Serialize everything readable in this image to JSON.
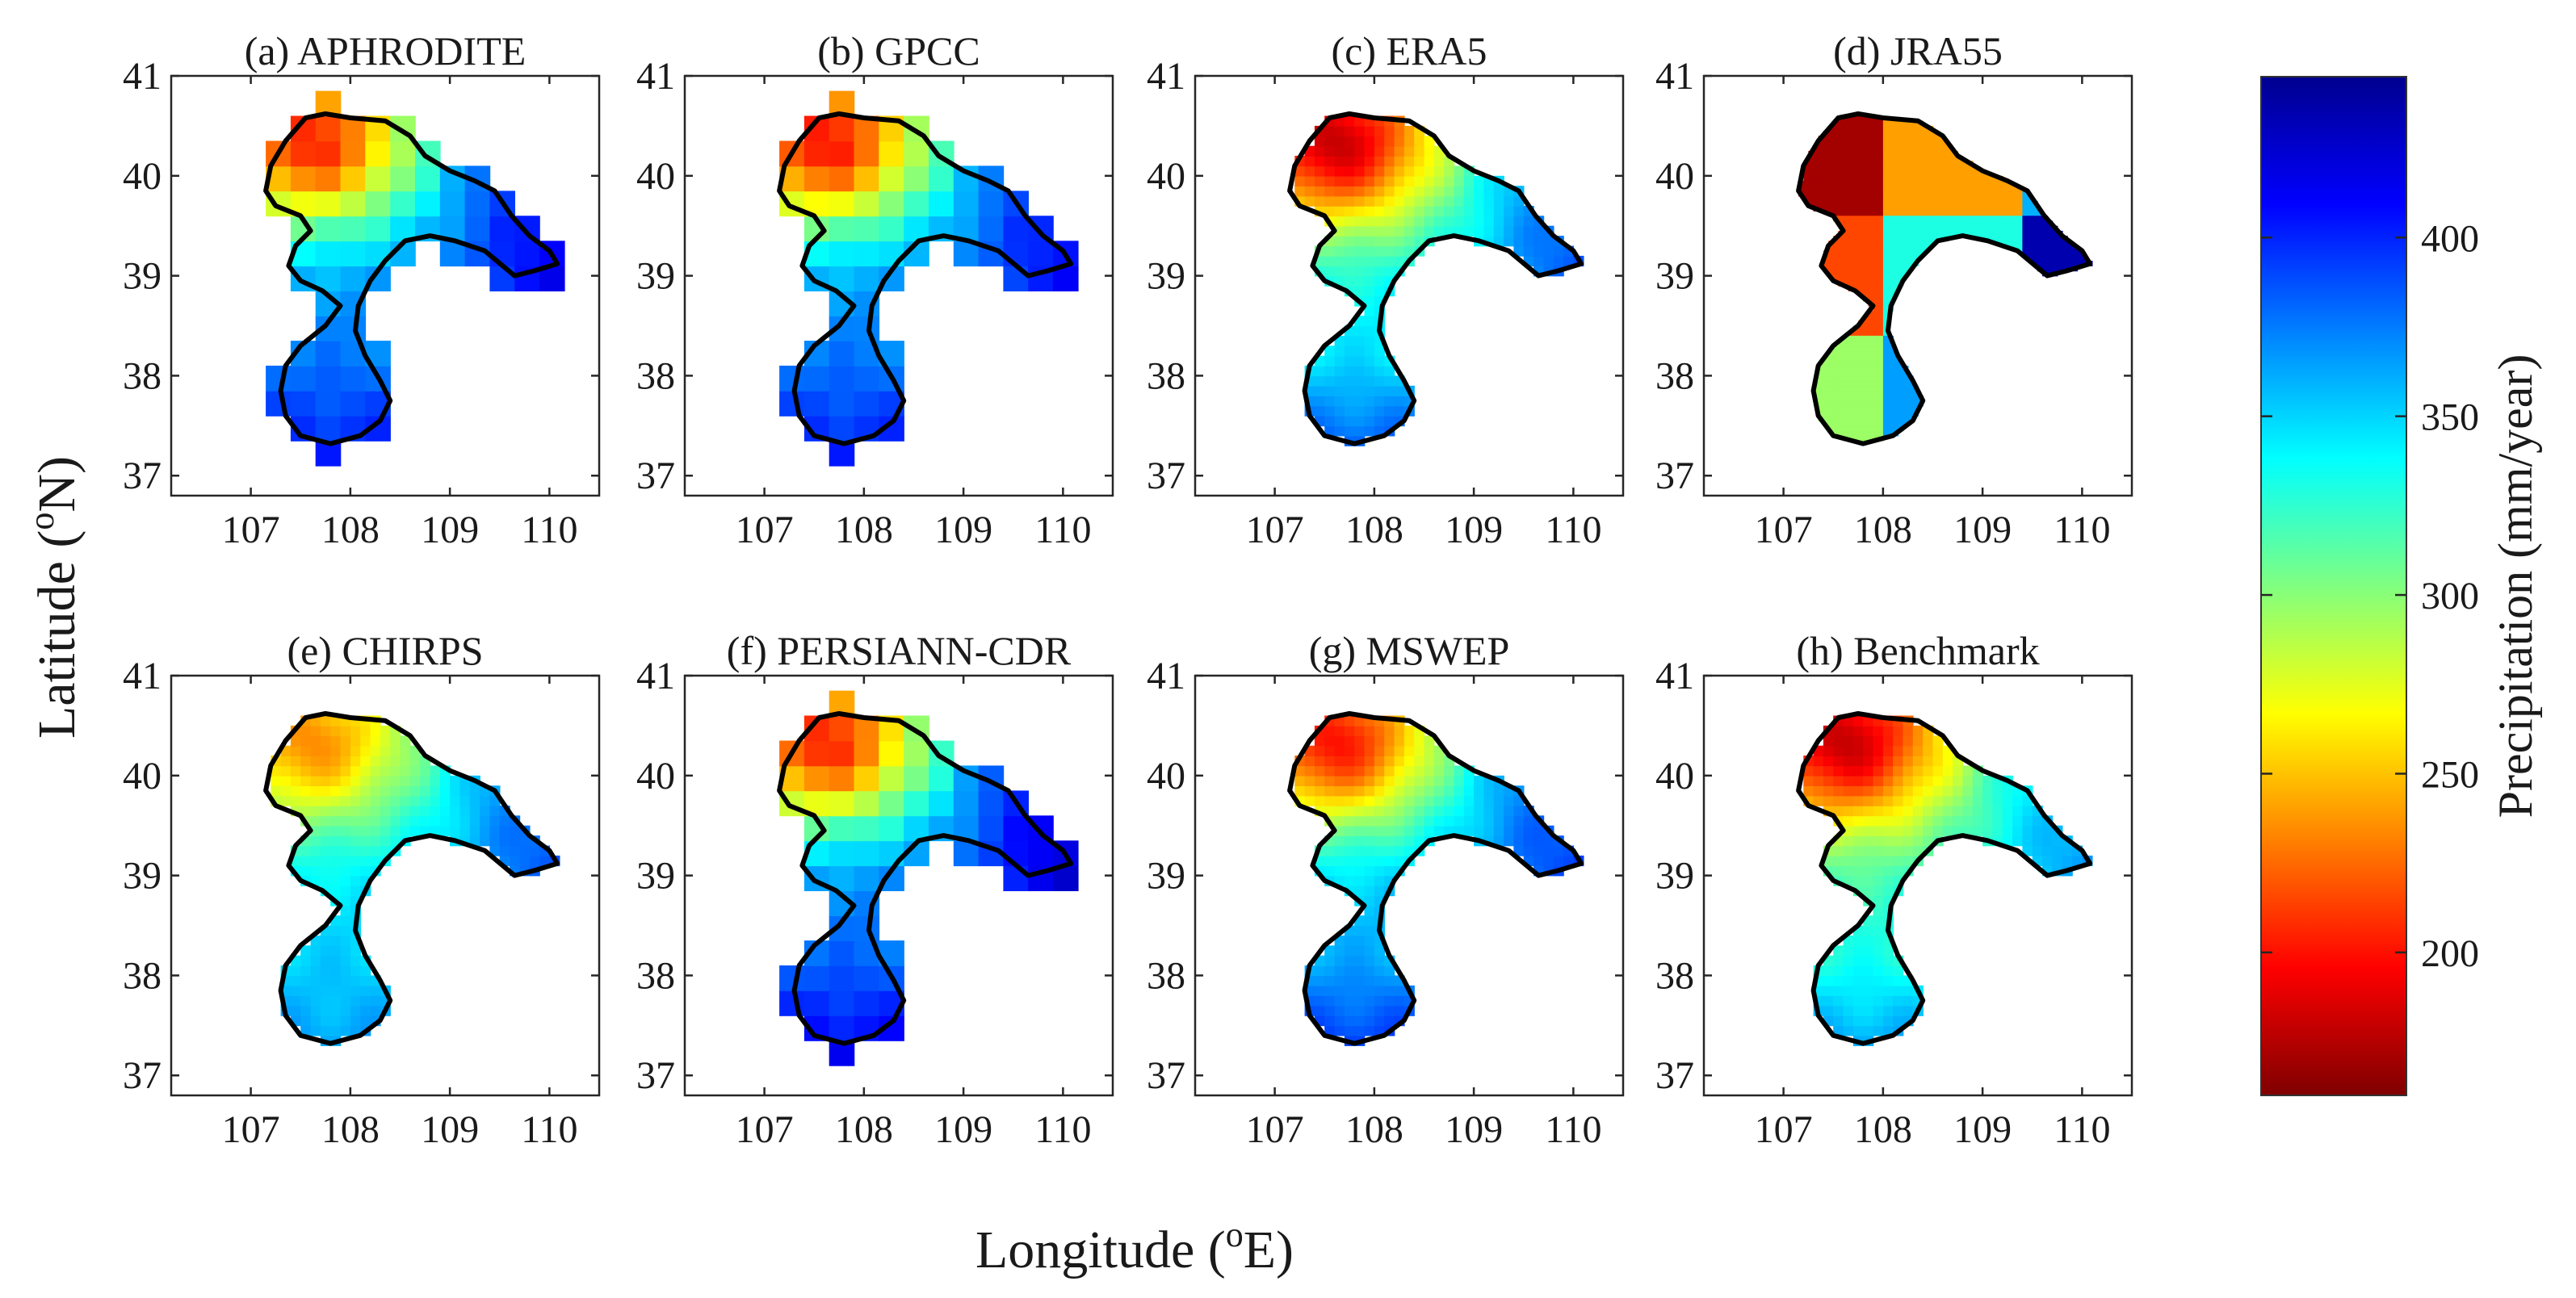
{
  "chart_data": {
    "type": "heatmap",
    "description_units": "Annual precipitation (mm/year) over a river basin, 37-41 N, 107-110 E",
    "xlabel": "Longitude (oE)",
    "ylabel": "Latitude (oN)",
    "xlabel_parts": {
      "pre": "Longitude (",
      "sup": "o",
      "post": "E)"
    },
    "ylabel_parts": {
      "pre": "Latitude (",
      "sup": "o",
      "post": "N)"
    },
    "x_ticks": [
      "107",
      "108",
      "109",
      "110"
    ],
    "y_ticks": [
      "41",
      "40",
      "39",
      "38",
      "37"
    ],
    "xlim": [
      106.2,
      110.5
    ],
    "ylim": [
      36.8,
      41.0
    ],
    "colorbar": {
      "label": "Precipitation (mm/year)",
      "min": 160,
      "max": 445,
      "ticks": [
        "200",
        "250",
        "300",
        "350",
        "400"
      ],
      "colormap": "jet_reversed",
      "colors": [
        "#7f0000",
        "#ff0000",
        "#ff8000",
        "#ffff00",
        "#80ff80",
        "#00ffff",
        "#0080ff",
        "#0000ff",
        "#00008f"
      ]
    },
    "panels": [
      {
        "title": "(a) APHRODITE",
        "grid": "coarse",
        "base": 375,
        "ne_drop": 170,
        "nw_drop": 0,
        "east_boost": 40,
        "south_boost": 25,
        "cell_deg": 0.25
      },
      {
        "title": "(b) GPCC",
        "grid": "coarse",
        "base": 375,
        "ne_drop": 175,
        "nw_drop": 0,
        "east_boost": 35,
        "south_boost": 25,
        "cell_deg": 0.25
      },
      {
        "title": "(c) ERA5",
        "grid": "fine",
        "base": 345,
        "ne_drop": 165,
        "nw_drop": 0,
        "east_boost": 45,
        "south_boost": 40,
        "cell_deg": 0.1
      },
      {
        "title": "(d) JRA55",
        "grid": "blocks",
        "blocks": [
          {
            "lon": [
              106.8,
              108.0
            ],
            "lat": [
              39.6,
              40.8
            ],
            "value": 170
          },
          {
            "lon": [
              108.0,
              109.4
            ],
            "lat": [
              39.6,
              40.8
            ],
            "value": 240
          },
          {
            "lon": [
              109.4,
              110.6
            ],
            "lat": [
              39.6,
              40.8
            ],
            "value": 360
          },
          {
            "lon": [
              106.8,
              108.0
            ],
            "lat": [
              38.4,
              39.6
            ],
            "value": 215
          },
          {
            "lon": [
              108.0,
              109.4
            ],
            "lat": [
              38.4,
              39.6
            ],
            "value": 330
          },
          {
            "lon": [
              109.4,
              110.6
            ],
            "lat": [
              38.4,
              39.6
            ],
            "value": 435
          },
          {
            "lon": [
              106.8,
              108.0
            ],
            "lat": [
              37.2,
              38.4
            ],
            "value": 295
          },
          {
            "lon": [
              108.0,
              109.4
            ],
            "lat": [
              37.2,
              38.4
            ],
            "value": 365
          }
        ]
      },
      {
        "title": "(e) CHIRPS",
        "grid": "fine",
        "base": 350,
        "ne_drop": 115,
        "nw_drop": 0,
        "east_boost": 40,
        "south_boost": 15,
        "cell_deg": 0.1
      },
      {
        "title": "(f) PERSIANN-CDR",
        "grid": "coarse",
        "base": 380,
        "ne_drop": 175,
        "nw_drop": 0,
        "east_boost": 45,
        "south_boost": 30,
        "cell_deg": 0.25
      },
      {
        "title": "(g) MSWEP",
        "grid": "fine",
        "base": 360,
        "ne_drop": 160,
        "nw_drop": 0,
        "east_boost": 35,
        "south_boost": 35,
        "cell_deg": 0.1
      },
      {
        "title": "(h) Benchmark",
        "grid": "fine",
        "base": 330,
        "ne_drop": 150,
        "nw_drop": 0,
        "east_boost": 40,
        "south_boost": 35,
        "cell_deg": 0.1
      }
    ],
    "basin_outline": [
      [
        107.55,
        40.58
      ],
      [
        107.75,
        40.62
      ],
      [
        108.0,
        40.58
      ],
      [
        108.35,
        40.55
      ],
      [
        108.6,
        40.4
      ],
      [
        108.75,
        40.2
      ],
      [
        109.0,
        40.05
      ],
      [
        109.25,
        39.95
      ],
      [
        109.45,
        39.85
      ],
      [
        109.62,
        39.6
      ],
      [
        109.8,
        39.4
      ],
      [
        110.0,
        39.25
      ],
      [
        110.08,
        39.12
      ],
      [
        109.85,
        39.05
      ],
      [
        109.65,
        39.0
      ],
      [
        109.35,
        39.25
      ],
      [
        109.05,
        39.35
      ],
      [
        108.8,
        39.4
      ],
      [
        108.55,
        39.35
      ],
      [
        108.35,
        39.15
      ],
      [
        108.2,
        38.95
      ],
      [
        108.08,
        38.7
      ],
      [
        108.05,
        38.45
      ],
      [
        108.15,
        38.2
      ],
      [
        108.3,
        37.95
      ],
      [
        108.4,
        37.75
      ],
      [
        108.3,
        37.55
      ],
      [
        108.1,
        37.4
      ],
      [
        107.8,
        37.32
      ],
      [
        107.5,
        37.4
      ],
      [
        107.35,
        37.6
      ],
      [
        107.3,
        37.85
      ],
      [
        107.35,
        38.1
      ],
      [
        107.5,
        38.3
      ],
      [
        107.75,
        38.5
      ],
      [
        107.9,
        38.7
      ],
      [
        107.72,
        38.85
      ],
      [
        107.5,
        38.95
      ],
      [
        107.38,
        39.1
      ],
      [
        107.45,
        39.3
      ],
      [
        107.6,
        39.45
      ],
      [
        107.5,
        39.6
      ],
      [
        107.25,
        39.7
      ],
      [
        107.15,
        39.85
      ],
      [
        107.2,
        40.1
      ],
      [
        107.35,
        40.35
      ]
    ]
  }
}
